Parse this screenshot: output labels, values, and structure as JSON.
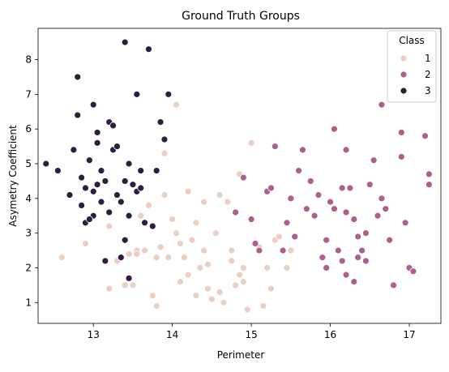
{
  "chart_data": {
    "type": "scatter",
    "title": "Ground Truth Groups",
    "xlabel": "Perimeter",
    "ylabel": "Asymetry Coefficient",
    "xlim": [
      12.3,
      17.4
    ],
    "ylim": [
      0.4,
      8.9
    ],
    "xticks": [
      "13",
      "14",
      "15",
      "16",
      "17"
    ],
    "yticks": [
      "1",
      "2",
      "3",
      "4",
      "5",
      "6",
      "7",
      "8"
    ],
    "grid": false,
    "legend": {
      "title": "Class",
      "placement": "top-right",
      "entries": [
        "1",
        "2",
        "3"
      ]
    },
    "series": [
      {
        "name": "1",
        "color": "#eacfc4",
        "points": [
          [
            12.6,
            2.3
          ],
          [
            12.9,
            2.7
          ],
          [
            13.2,
            3.2
          ],
          [
            13.3,
            2.2
          ],
          [
            13.4,
            1.5
          ],
          [
            13.45,
            2.4
          ],
          [
            13.5,
            1.5
          ],
          [
            13.55,
            2.5
          ],
          [
            13.6,
            3.5
          ],
          [
            13.65,
            2.5
          ],
          [
            13.7,
            3.8
          ],
          [
            13.75,
            1.2
          ],
          [
            13.8,
            0.9
          ],
          [
            13.8,
            2.3
          ],
          [
            13.85,
            2.6
          ],
          [
            13.9,
            4.1
          ],
          [
            13.9,
            5.3
          ],
          [
            13.95,
            2.3
          ],
          [
            14.0,
            3.4
          ],
          [
            14.05,
            3.0
          ],
          [
            14.1,
            1.6
          ],
          [
            14.1,
            2.7
          ],
          [
            14.15,
            2.3
          ],
          [
            14.2,
            1.8
          ],
          [
            14.2,
            4.2
          ],
          [
            14.25,
            2.8
          ],
          [
            14.3,
            3.3
          ],
          [
            14.3,
            1.2
          ],
          [
            14.35,
            2.0
          ],
          [
            14.4,
            2.5
          ],
          [
            14.4,
            3.9
          ],
          [
            14.45,
            1.4
          ],
          [
            14.5,
            1.1
          ],
          [
            14.55,
            3.0
          ],
          [
            14.6,
            4.1
          ],
          [
            14.65,
            1.0
          ],
          [
            14.7,
            3.9
          ],
          [
            14.75,
            2.2
          ],
          [
            14.8,
            1.5
          ],
          [
            14.85,
            1.8
          ],
          [
            14.85,
            4.7
          ],
          [
            14.9,
            1.6
          ],
          [
            14.9,
            2.0
          ],
          [
            14.95,
            0.8
          ],
          [
            15.0,
            5.6
          ],
          [
            15.0,
            3.4
          ],
          [
            15.1,
            2.6
          ],
          [
            15.15,
            0.9
          ],
          [
            15.2,
            2.0
          ],
          [
            15.3,
            2.8
          ],
          [
            15.35,
            2.9
          ],
          [
            15.45,
            2.0
          ],
          [
            15.5,
            2.5
          ],
          [
            13.2,
            1.4
          ],
          [
            14.05,
            6.7
          ],
          [
            13.55,
            2.4
          ],
          [
            14.45,
            2.1
          ],
          [
            14.6,
            1.3
          ],
          [
            14.75,
            2.5
          ],
          [
            15.25,
            1.4
          ]
        ]
      },
      {
        "name": "2",
        "color": "#ae5f8c",
        "points": [
          [
            14.8,
            3.6
          ],
          [
            14.9,
            4.6
          ],
          [
            15.0,
            3.4
          ],
          [
            15.05,
            2.7
          ],
          [
            15.1,
            2.5
          ],
          [
            15.2,
            4.2
          ],
          [
            15.25,
            4.3
          ],
          [
            15.3,
            5.5
          ],
          [
            15.4,
            2.5
          ],
          [
            15.45,
            3.3
          ],
          [
            15.5,
            4.0
          ],
          [
            15.55,
            2.9
          ],
          [
            15.6,
            4.8
          ],
          [
            15.65,
            5.4
          ],
          [
            15.7,
            3.7
          ],
          [
            15.75,
            4.5
          ],
          [
            15.8,
            3.5
          ],
          [
            15.85,
            4.1
          ],
          [
            15.9,
            2.3
          ],
          [
            15.95,
            2.0
          ],
          [
            16.0,
            3.9
          ],
          [
            16.05,
            6.0
          ],
          [
            16.1,
            2.5
          ],
          [
            16.15,
            2.2
          ],
          [
            16.2,
            5.4
          ],
          [
            16.25,
            4.3
          ],
          [
            16.3,
            3.4
          ],
          [
            16.3,
            1.6
          ],
          [
            16.35,
            2.9
          ],
          [
            16.4,
            2.5
          ],
          [
            16.45,
            3.0
          ],
          [
            16.5,
            4.4
          ],
          [
            16.55,
            5.1
          ],
          [
            16.6,
            3.5
          ],
          [
            16.65,
            6.7
          ],
          [
            16.7,
            3.7
          ],
          [
            16.75,
            2.8
          ],
          [
            16.8,
            1.5
          ],
          [
            16.9,
            5.9
          ],
          [
            16.95,
            3.3
          ],
          [
            17.0,
            2.0
          ],
          [
            17.05,
            1.9
          ],
          [
            17.2,
            5.8
          ],
          [
            17.25,
            4.7
          ],
          [
            17.25,
            4.4
          ],
          [
            16.2,
            3.6
          ],
          [
            16.35,
            2.3
          ],
          [
            16.65,
            4.0
          ],
          [
            16.9,
            5.2
          ],
          [
            16.2,
            1.8
          ],
          [
            16.45,
            2.2
          ],
          [
            15.95,
            2.8
          ],
          [
            16.05,
            3.7
          ],
          [
            16.15,
            4.3
          ]
        ]
      },
      {
        "name": "3",
        "color": "#2d1e3e",
        "points": [
          [
            12.4,
            5.0
          ],
          [
            12.55,
            4.8
          ],
          [
            12.7,
            4.1
          ],
          [
            12.75,
            5.4
          ],
          [
            12.8,
            7.5
          ],
          [
            12.8,
            6.4
          ],
          [
            12.85,
            4.6
          ],
          [
            12.9,
            4.3
          ],
          [
            12.9,
            3.3
          ],
          [
            12.95,
            5.1
          ],
          [
            13.0,
            4.2
          ],
          [
            13.0,
            3.5
          ],
          [
            13.0,
            6.7
          ],
          [
            13.05,
            5.9
          ],
          [
            13.05,
            5.6
          ],
          [
            13.1,
            4.8
          ],
          [
            13.1,
            3.9
          ],
          [
            13.15,
            2.2
          ],
          [
            13.2,
            3.6
          ],
          [
            13.2,
            6.2
          ],
          [
            13.25,
            5.4
          ],
          [
            13.3,
            5.5
          ],
          [
            13.3,
            4.1
          ],
          [
            13.35,
            2.3
          ],
          [
            13.4,
            4.5
          ],
          [
            13.4,
            8.5
          ],
          [
            13.45,
            5.0
          ],
          [
            13.45,
            3.5
          ],
          [
            13.5,
            4.4
          ],
          [
            13.55,
            7.0
          ],
          [
            13.55,
            4.2
          ],
          [
            13.6,
            4.8
          ],
          [
            13.65,
            3.3
          ],
          [
            13.7,
            8.3
          ],
          [
            13.75,
            3.2
          ],
          [
            13.8,
            4.8
          ],
          [
            13.85,
            6.2
          ],
          [
            13.9,
            5.7
          ],
          [
            13.95,
            7.0
          ],
          [
            12.95,
            3.4
          ],
          [
            13.25,
            6.1
          ],
          [
            13.15,
            4.5
          ],
          [
            13.35,
            3.9
          ],
          [
            13.45,
            1.7
          ],
          [
            13.6,
            4.3
          ],
          [
            13.05,
            4.4
          ],
          [
            12.85,
            3.8
          ],
          [
            13.4,
            2.8
          ]
        ]
      }
    ]
  }
}
